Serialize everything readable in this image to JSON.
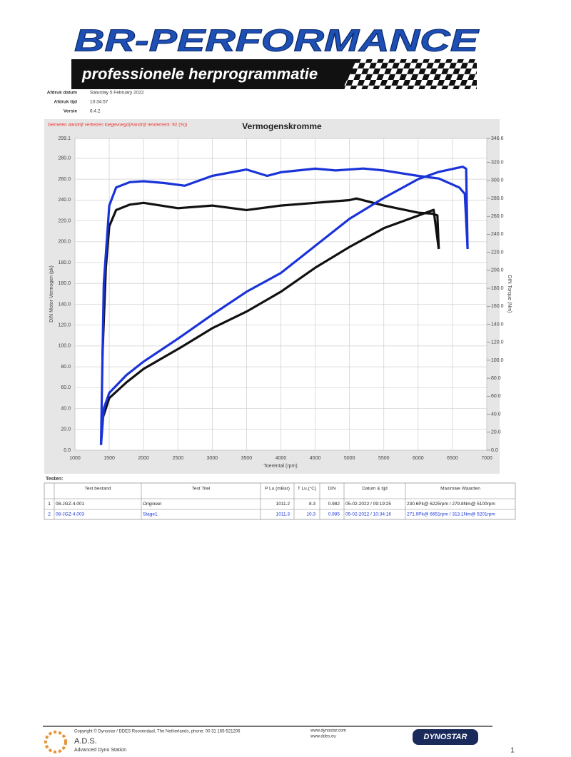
{
  "logo": {
    "title": "BR-PERFORMANCE",
    "subtitle": "professionele herprogrammatie"
  },
  "info": [
    {
      "label": "Afdruk datum",
      "value": "Saturday 5 February 2022"
    },
    {
      "label": "Afdruk tijd",
      "value": "10:34:57"
    },
    {
      "label": "Versie",
      "value": "6.4.2"
    }
  ],
  "chart_data": {
    "type": "line",
    "title": "Vermogenskromme",
    "note": "Gemeten aandrijf verliezen toegevoegd(Aandrijf rendement: 92 (%))",
    "x_label": "Toerental (rpm)",
    "y_label": "DIN Motor Vermogen (pk)",
    "y2_label": "DIN Torque (Nm)",
    "xlim": [
      1000,
      7000
    ],
    "xticks": [
      1000,
      1500,
      2000,
      2500,
      3000,
      3500,
      4000,
      4500,
      5000,
      5500,
      6000,
      6500,
      7000
    ],
    "ylim": [
      0,
      299.1
    ],
    "yticks": [
      {
        "value": 0,
        "label": "0.0"
      },
      {
        "value": 20,
        "label": "20.0"
      },
      {
        "value": 40,
        "label": "40.0"
      },
      {
        "value": 60,
        "label": "60.0"
      },
      {
        "value": 80,
        "label": "80.0"
      },
      {
        "value": 100,
        "label": "100.0"
      },
      {
        "value": 120,
        "label": "120.0"
      },
      {
        "value": 140,
        "label": "140.0"
      },
      {
        "value": 160,
        "label": "160.0"
      },
      {
        "value": 180,
        "label": "180.0"
      },
      {
        "value": 200,
        "label": "200.0"
      },
      {
        "value": 220,
        "label": "220.0"
      },
      {
        "value": 240,
        "label": "240.0"
      },
      {
        "value": 260,
        "label": "260.0"
      },
      {
        "value": 280,
        "label": "280.0"
      },
      {
        "value": 299.1,
        "label": "299.1"
      }
    ],
    "y2lim": [
      0,
      346.6
    ],
    "y2ticks": [
      {
        "value": 0,
        "label": "0.0"
      },
      {
        "value": 20,
        "label": "20.0"
      },
      {
        "value": 40,
        "label": "40.0"
      },
      {
        "value": 60,
        "label": "60.0"
      },
      {
        "value": 80,
        "label": "80.0"
      },
      {
        "value": 100,
        "label": "100.0"
      },
      {
        "value": 120,
        "label": "120.0"
      },
      {
        "value": 140,
        "label": "140.0"
      },
      {
        "value": 160,
        "label": "160.0"
      },
      {
        "value": 180,
        "label": "180.0"
      },
      {
        "value": 200,
        "label": "200.0"
      },
      {
        "value": 220,
        "label": "220.0"
      },
      {
        "value": 240,
        "label": "240.0"
      },
      {
        "value": 260,
        "label": "260.0"
      },
      {
        "value": 280,
        "label": "280.0"
      },
      {
        "value": 300,
        "label": "300.0"
      },
      {
        "value": 320,
        "label": "320.0"
      },
      {
        "value": 346.6,
        "label": "346.6"
      }
    ],
    "grid": true,
    "series": [
      {
        "color": "#111111",
        "x": [
          1400,
          1500,
          1750,
          2000,
          2500,
          3000,
          3500,
          4000,
          4500,
          5000,
          5500,
          6000,
          6225,
          6300
        ],
        "values": [
          30,
          50,
          65,
          78,
          97,
          117,
          133,
          152,
          175,
          195,
          213,
          225,
          230.6,
          193
        ]
      },
      {
        "color": "#111111",
        "axis": "y2",
        "x": [
          1400,
          1450,
          1500,
          1600,
          1800,
          2000,
          2500,
          3000,
          3500,
          4000,
          4500,
          5000,
          5100,
          5500,
          6000,
          6200,
          6280,
          6300
        ],
        "values": [
          104,
          203,
          249,
          267,
          273,
          275,
          269,
          272,
          267,
          272,
          275,
          278,
          279.8,
          272,
          264,
          263,
          261,
          224
        ]
      },
      {
        "color": "#1a33d9",
        "x": [
          1380,
          1420,
          1500,
          1750,
          2000,
          2500,
          3000,
          3500,
          4000,
          4500,
          5000,
          5500,
          6000,
          6300,
          6651,
          6700,
          6720
        ],
        "values": [
          5,
          40,
          55,
          72,
          85,
          107,
          130,
          152,
          170,
          196,
          222,
          242,
          260,
          267,
          271.9,
          270,
          193
        ]
      },
      {
        "color": "#1a33d9",
        "axis": "y2",
        "x": [
          1380,
          1420,
          1500,
          1600,
          1800,
          2000,
          2300,
          2600,
          3000,
          3500,
          3800,
          4000,
          4500,
          4800,
          5201,
          5500,
          6000,
          6300,
          6600,
          6680,
          6720
        ],
        "values": [
          6,
          185,
          272,
          292,
          298,
          299,
          297,
          294,
          305,
          312,
          305,
          309,
          313,
          311,
          313.1,
          311,
          305,
          302,
          292,
          285,
          224
        ]
      }
    ]
  },
  "table": {
    "caption": "Testen:",
    "header": [
      "Test bestand",
      "Test Titel",
      "P Lu.(mBar)",
      "T Lu.(°C)",
      "DIN",
      "Datum & tijd",
      "Maximale Waarden"
    ],
    "rows": [
      [
        "1",
        "08-JGZ-4.001",
        "Origineel",
        "1011.2",
        "8.3",
        "0.982",
        "05-02-2022 / 09:19:25",
        "230.6Pk@ 6225rpm / 279.8Nm@ 5100rpm"
      ],
      [
        "2",
        "08-JGZ-4.003",
        "Stage1",
        "1011.3",
        "10.3",
        "0.985",
        "05-02-2022 / 10:34:16",
        "271.9Pk@ 6651rpm / 313.1Nm@ 5201rpm"
      ]
    ]
  },
  "footer": {
    "copyright": "Copyright © Dynostar / DDES Roosendaal, The Netherlands, phone: 00 31 165-521206",
    "site1": "www.dynostar.com",
    "site2": "www.ddes.eu",
    "brand": "A.D.S.",
    "brand_sub": "Advanced Dyno Station",
    "logo": "DYNOSTAR",
    "page": "1"
  }
}
